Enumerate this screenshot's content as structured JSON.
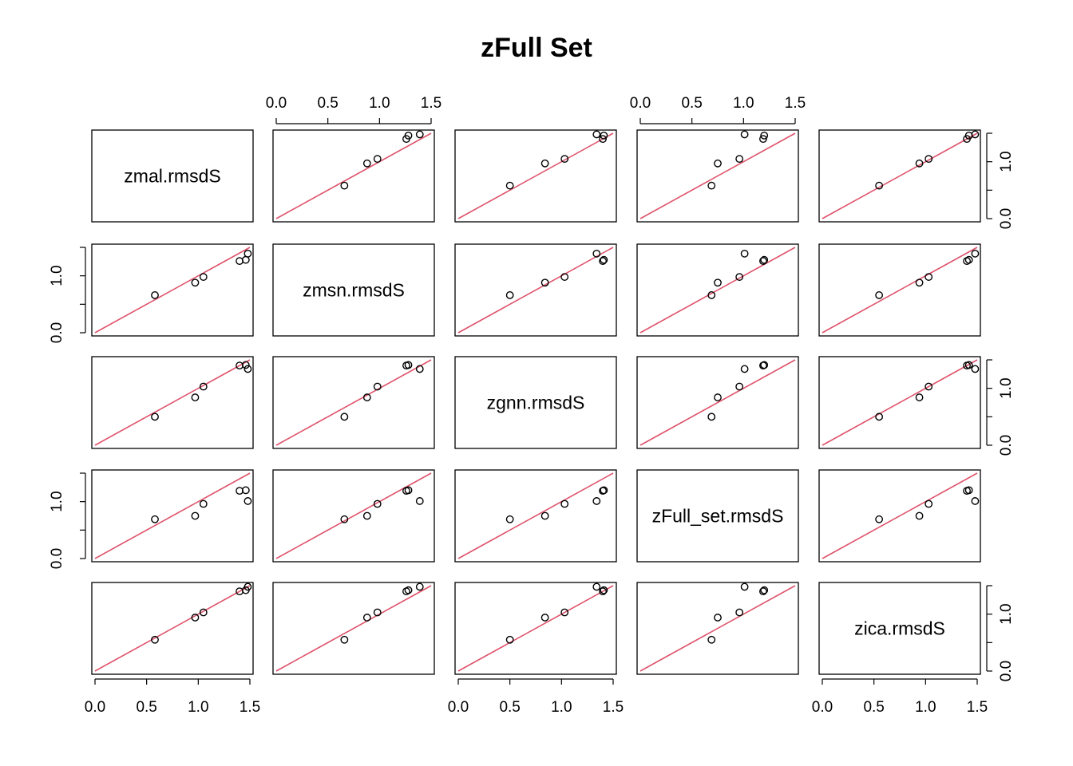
{
  "chart_data": {
    "type": "scatter",
    "title": "zFull Set",
    "variables": [
      "zmal.rmsdS",
      "zmsn.rmsdS",
      "zgnn.rmsdS",
      "zFull_set.rmsdS",
      "zica.rmsdS"
    ],
    "ranges": [
      [
        0.0,
        1.5
      ],
      [
        0.0,
        1.5
      ],
      [
        0.0,
        1.5
      ],
      [
        0.0,
        1.5
      ],
      [
        0.0,
        1.5
      ]
    ],
    "tick_values": [
      0.0,
      0.5,
      1.0,
      1.5
    ],
    "tick_labels": {
      "bottom": [
        "0.0",
        "0.5",
        "1.0",
        "1.5"
      ],
      "top": [
        "0.0",
        "0.5",
        "1.0",
        "1.5"
      ],
      "left": [
        "0.0",
        "1.0"
      ],
      "right": [
        "0.0",
        "1.0"
      ]
    },
    "values": {
      "zmal.rmsdS": [
        0.58,
        0.97,
        1.05,
        1.4,
        1.46,
        1.48
      ],
      "zmsn.rmsdS": [
        0.66,
        0.88,
        0.98,
        1.26,
        1.28,
        1.39
      ],
      "zgnn.rmsdS": [
        0.5,
        0.84,
        1.03,
        1.4,
        1.41,
        1.34
      ],
      "zFull_set.rmsdS": [
        0.69,
        0.75,
        0.96,
        1.19,
        1.2,
        1.01
      ],
      "zica.rmsdS": [
        0.55,
        0.94,
        1.03,
        1.4,
        1.42,
        1.48
      ]
    },
    "reference_line": {
      "slope": 1,
      "intercept": 0,
      "color": "#DF536B"
    },
    "point_color": "#000000",
    "grid": false
  }
}
